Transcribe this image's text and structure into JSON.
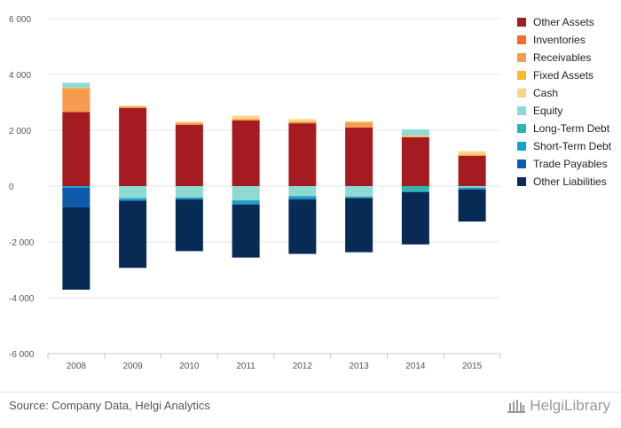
{
  "chart_data": {
    "type": "bar",
    "stacked": true,
    "categories": [
      "2008",
      "2009",
      "2010",
      "2011",
      "2012",
      "2013",
      "2014",
      "2015"
    ],
    "ylim": [
      -6000,
      6000
    ],
    "yticks": [
      6000,
      4000,
      2000,
      0,
      -2000,
      -4000,
      -6000
    ],
    "ytick_labels": [
      "6 000",
      "4 000",
      "2 000",
      "0",
      "-2 000",
      "-4 000",
      "-6 000"
    ],
    "grid": true,
    "legend_position": "right",
    "series": [
      {
        "name": "Other Assets",
        "color": "#a51b22",
        "values": [
          2650,
          2800,
          2200,
          2350,
          2250,
          2100,
          1750,
          1080
        ]
      },
      {
        "name": "Inventories",
        "color": "#f46b2c",
        "values": [
          0,
          0,
          0,
          0,
          0,
          0,
          0,
          0
        ]
      },
      {
        "name": "Receivables",
        "color": "#f79b4f",
        "values": [
          850,
          40,
          60,
          50,
          50,
          180,
          20,
          40
        ]
      },
      {
        "name": "Fixed Assets",
        "color": "#f5b82e",
        "values": [
          30,
          20,
          20,
          20,
          20,
          20,
          20,
          20
        ]
      },
      {
        "name": "Cash",
        "color": "#f9d58a",
        "values": [
          0,
          20,
          30,
          100,
          80,
          20,
          20,
          110
        ]
      },
      {
        "name": "Equity",
        "color": "#8ddad3",
        "values": [
          170,
          -420,
          -400,
          -500,
          -350,
          -370,
          220,
          -40
        ]
      },
      {
        "name": "Long-Term Debt",
        "color": "#2bb8ac",
        "values": [
          0,
          -20,
          -20,
          -20,
          -20,
          -20,
          -180,
          -20
        ]
      },
      {
        "name": "Short-Term Debt",
        "color": "#17a0d2",
        "values": [
          -60,
          -60,
          -40,
          -120,
          -80,
          -20,
          -20,
          -40
        ]
      },
      {
        "name": "Trade Payables",
        "color": "#0e5aab",
        "values": [
          -700,
          -30,
          -20,
          -20,
          -30,
          -30,
          -20,
          -20
        ]
      },
      {
        "name": "Other Liabilities",
        "color": "#082b55",
        "values": [
          -2950,
          -2400,
          -1850,
          -1900,
          -1950,
          -1930,
          -1870,
          -1150
        ]
      }
    ],
    "legend_order": [
      "Other Assets",
      "Inventories",
      "Receivables",
      "Fixed Assets",
      "Cash",
      "Equity",
      "Long-Term Debt",
      "Short-Term Debt",
      "Trade Payables",
      "Other Liabilities"
    ]
  },
  "footer": {
    "source": "Source: Company Data, Helgi Analytics",
    "logo_text": "HelgiLibrary"
  }
}
